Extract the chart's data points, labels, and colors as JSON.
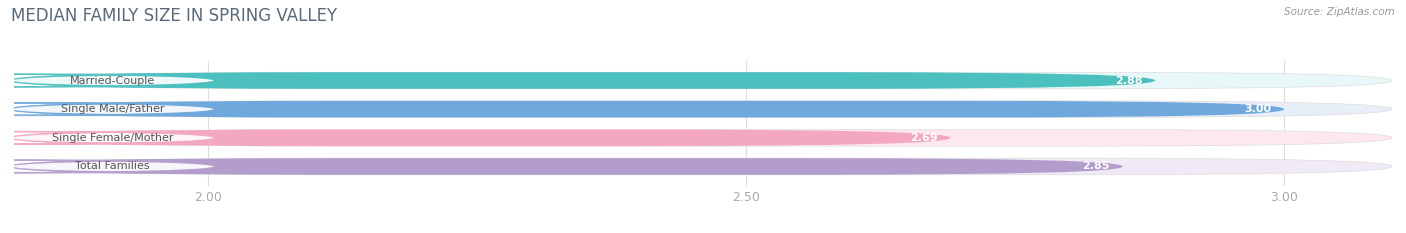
{
  "title": "MEDIAN FAMILY SIZE IN SPRING VALLEY",
  "source": "Source: ZipAtlas.com",
  "categories": [
    "Married-Couple",
    "Single Male/Father",
    "Single Female/Mother",
    "Total Families"
  ],
  "values": [
    2.88,
    3.0,
    2.69,
    2.85
  ],
  "bar_colors": [
    "#4cbfbf",
    "#6fa8dc",
    "#f4a7c0",
    "#b39dcc"
  ],
  "bar_bg_colors": [
    "#e8f8f8",
    "#e8eef8",
    "#fde8f0",
    "#f0eaf6"
  ],
  "xlim_min": 1.82,
  "xlim_max": 3.1,
  "xticks": [
    2.0,
    2.5,
    3.0
  ],
  "title_color": "#5a6a7a",
  "source_color": "#999999",
  "tick_color": "#aaaaaa",
  "background_color": "#ffffff",
  "bar_height": 0.58,
  "bar_gap": 0.42,
  "figsize": [
    14.06,
    2.33
  ],
  "dpi": 100,
  "title_fontsize": 12,
  "label_fontsize": 8,
  "value_fontsize": 8,
  "tick_fontsize": 9
}
